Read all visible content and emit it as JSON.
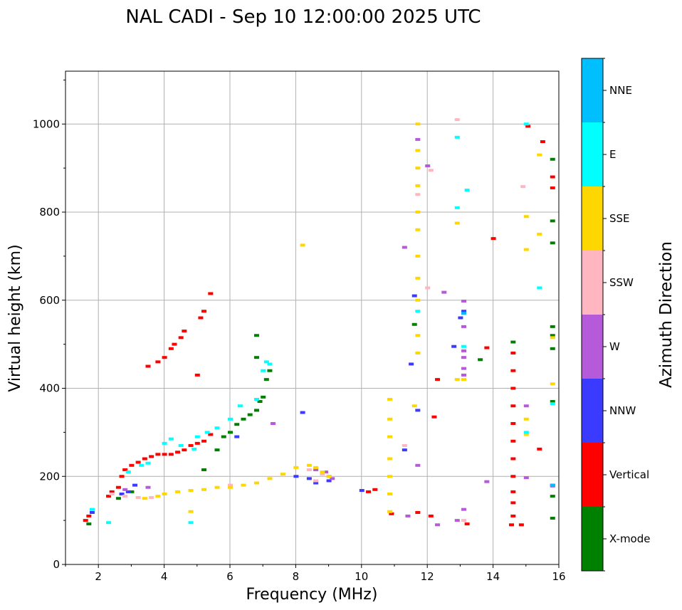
{
  "chart_data": {
    "type": "scatter",
    "title": "NAL CADI - Sep 10 12:00:00 2025 UTC",
    "xlabel": "Frequency (MHz)",
    "ylabel": "Virtual height (km)",
    "xlim": [
      1,
      16
    ],
    "ylim": [
      0,
      1120
    ],
    "xticks": [
      "2",
      "4",
      "6",
      "8",
      "10",
      "12",
      "14",
      "16"
    ],
    "yticks": [
      "0",
      "200",
      "400",
      "600",
      "800",
      "1000"
    ],
    "grid": true,
    "colorbar": {
      "title": "Azimuth Direction",
      "categories": [
        "X-mode",
        "Vertical",
        "NNW",
        "W",
        "SSW",
        "SSE",
        "E",
        "NNE"
      ],
      "colors": [
        "#008000",
        "#ff0000",
        "#3b3bff",
        "#b55ad8",
        "#ffb6c1",
        "#ffd700",
        "#00ffff",
        "#00bfff"
      ]
    },
    "series": [
      {
        "name": "X-mode",
        "points": [
          [
            1.7,
            92
          ],
          [
            2.6,
            150
          ],
          [
            3.0,
            165
          ],
          [
            5.2,
            215
          ],
          [
            5.6,
            260
          ],
          [
            5.8,
            290
          ],
          [
            6.0,
            300
          ],
          [
            6.2,
            318
          ],
          [
            6.4,
            330
          ],
          [
            6.6,
            340
          ],
          [
            6.8,
            350
          ],
          [
            6.9,
            370
          ],
          [
            7.0,
            380
          ],
          [
            7.1,
            420
          ],
          [
            7.2,
            440
          ],
          [
            6.8,
            470
          ],
          [
            6.8,
            520
          ],
          [
            11.6,
            545
          ],
          [
            14.6,
            505
          ],
          [
            15.8,
            370
          ],
          [
            15.8,
            490
          ],
          [
            15.8,
            520
          ],
          [
            15.8,
            540
          ],
          [
            15.8,
            730
          ],
          [
            15.8,
            780
          ],
          [
            15.8,
            920
          ],
          [
            15.8,
            105
          ],
          [
            15.8,
            155
          ],
          [
            13.6,
            465
          ]
        ]
      },
      {
        "name": "Vertical",
        "points": [
          [
            1.6,
            100
          ],
          [
            1.7,
            110
          ],
          [
            2.3,
            155
          ],
          [
            2.4,
            165
          ],
          [
            2.6,
            175
          ],
          [
            2.7,
            200
          ],
          [
            2.8,
            215
          ],
          [
            3.0,
            225
          ],
          [
            3.2,
            232
          ],
          [
            3.4,
            240
          ],
          [
            3.6,
            245
          ],
          [
            3.8,
            250
          ],
          [
            4.0,
            250
          ],
          [
            4.2,
            250
          ],
          [
            4.4,
            255
          ],
          [
            4.6,
            260
          ],
          [
            4.8,
            270
          ],
          [
            5.0,
            275
          ],
          [
            5.2,
            280
          ],
          [
            5.4,
            295
          ],
          [
            5.0,
            430
          ],
          [
            5.1,
            560
          ],
          [
            5.2,
            575
          ],
          [
            5.4,
            615
          ],
          [
            4.0,
            470
          ],
          [
            4.2,
            490
          ],
          [
            4.3,
            500
          ],
          [
            4.5,
            515
          ],
          [
            4.6,
            530
          ],
          [
            3.5,
            450
          ],
          [
            3.8,
            460
          ],
          [
            10.2,
            165
          ],
          [
            10.4,
            170
          ],
          [
            10.9,
            115
          ],
          [
            11.7,
            118
          ],
          [
            12.1,
            110
          ],
          [
            12.2,
            335
          ],
          [
            12.3,
            420
          ],
          [
            13.2,
            92
          ],
          [
            14.0,
            740
          ],
          [
            13.8,
            492
          ],
          [
            14.55,
            90
          ],
          [
            14.6,
            110
          ],
          [
            14.6,
            140
          ],
          [
            14.6,
            165
          ],
          [
            14.6,
            200
          ],
          [
            14.6,
            240
          ],
          [
            14.6,
            280
          ],
          [
            14.6,
            320
          ],
          [
            14.6,
            360
          ],
          [
            14.6,
            400
          ],
          [
            14.6,
            440
          ],
          [
            14.6,
            480
          ],
          [
            14.85,
            90
          ],
          [
            15.05,
            995
          ],
          [
            15.4,
            262
          ],
          [
            15.5,
            960
          ],
          [
            15.8,
            855
          ],
          [
            15.8,
            880
          ]
        ]
      },
      {
        "name": "NNW",
        "points": [
          [
            1.8,
            118
          ],
          [
            2.7,
            160
          ],
          [
            2.9,
            165
          ],
          [
            3.1,
            180
          ],
          [
            6.2,
            290
          ],
          [
            8.0,
            200
          ],
          [
            8.2,
            345
          ],
          [
            8.4,
            195
          ],
          [
            8.6,
            185
          ],
          [
            9.0,
            190
          ],
          [
            10.0,
            168
          ],
          [
            11.3,
            260
          ],
          [
            11.5,
            455
          ],
          [
            11.6,
            610
          ],
          [
            11.7,
            350
          ],
          [
            12.8,
            495
          ],
          [
            13.0,
            560
          ],
          [
            13.1,
            575
          ],
          [
            15.8,
            180
          ]
        ]
      },
      {
        "name": "W",
        "points": [
          [
            2.8,
            170
          ],
          [
            3.5,
            175
          ],
          [
            7.3,
            320
          ],
          [
            8.6,
            215
          ],
          [
            8.9,
            210
          ],
          [
            9.0,
            200
          ],
          [
            9.1,
            195
          ],
          [
            11.3,
            720
          ],
          [
            11.4,
            110
          ],
          [
            11.7,
            225
          ],
          [
            11.7,
            965
          ],
          [
            12.0,
            905
          ],
          [
            12.3,
            90
          ],
          [
            12.5,
            618
          ],
          [
            12.9,
            100
          ],
          [
            13.1,
            125
          ],
          [
            13.1,
            470
          ],
          [
            13.1,
            485
          ],
          [
            13.1,
            598
          ],
          [
            13.1,
            540
          ],
          [
            13.1,
            445
          ],
          [
            13.1,
            430
          ],
          [
            13.8,
            188
          ],
          [
            15.0,
            197
          ],
          [
            15.0,
            360
          ],
          [
            15.8,
            178
          ]
        ]
      },
      {
        "name": "SSW",
        "points": [
          [
            2.4,
            160
          ],
          [
            2.8,
            155
          ],
          [
            3.2,
            152
          ],
          [
            3.6,
            152
          ],
          [
            6.0,
            180
          ],
          [
            8.4,
            215
          ],
          [
            8.6,
            190
          ],
          [
            8.8,
            205
          ],
          [
            11.3,
            270
          ],
          [
            11.7,
            840
          ],
          [
            12.0,
            628
          ],
          [
            12.1,
            895
          ],
          [
            12.9,
            1010
          ],
          [
            13.1,
            100
          ],
          [
            14.9,
            858
          ]
        ]
      },
      {
        "name": "SSE",
        "points": [
          [
            3.4,
            150
          ],
          [
            3.8,
            155
          ],
          [
            4.0,
            160
          ],
          [
            4.4,
            165
          ],
          [
            4.8,
            168
          ],
          [
            5.2,
            170
          ],
          [
            5.6,
            175
          ],
          [
            6.0,
            175
          ],
          [
            6.4,
            180
          ],
          [
            6.8,
            185
          ],
          [
            7.2,
            195
          ],
          [
            7.6,
            205
          ],
          [
            8.0,
            220
          ],
          [
            8.4,
            225
          ],
          [
            8.6,
            220
          ],
          [
            8.8,
            210
          ],
          [
            9.0,
            200
          ],
          [
            10.85,
            120
          ],
          [
            10.85,
            160
          ],
          [
            10.85,
            200
          ],
          [
            10.85,
            240
          ],
          [
            10.85,
            290
          ],
          [
            10.85,
            330
          ],
          [
            10.85,
            375
          ],
          [
            4.8,
            120
          ],
          [
            8.2,
            725
          ],
          [
            11.6,
            360
          ],
          [
            11.7,
            480
          ],
          [
            11.7,
            520
          ],
          [
            11.7,
            600
          ],
          [
            11.7,
            650
          ],
          [
            11.7,
            700
          ],
          [
            11.7,
            760
          ],
          [
            11.7,
            800
          ],
          [
            11.7,
            860
          ],
          [
            11.7,
            900
          ],
          [
            11.7,
            940
          ],
          [
            11.7,
            1000
          ],
          [
            12.9,
            420
          ],
          [
            12.9,
            775
          ],
          [
            13.1,
            420
          ],
          [
            15.0,
            295
          ],
          [
            15.0,
            330
          ],
          [
            15.0,
            715
          ],
          [
            15.0,
            790
          ],
          [
            15.4,
            930
          ],
          [
            15.4,
            750
          ],
          [
            15.8,
            410
          ],
          [
            15.8,
            515
          ]
        ]
      },
      {
        "name": "E",
        "points": [
          [
            1.8,
            125
          ],
          [
            2.3,
            95
          ],
          [
            2.9,
            210
          ],
          [
            3.3,
            225
          ],
          [
            3.5,
            230
          ],
          [
            4.0,
            275
          ],
          [
            4.2,
            285
          ],
          [
            4.5,
            270
          ],
          [
            4.9,
            262
          ],
          [
            5.0,
            290
          ],
          [
            5.3,
            300
          ],
          [
            5.6,
            310
          ],
          [
            6.0,
            330
          ],
          [
            6.3,
            360
          ],
          [
            6.8,
            375
          ],
          [
            7.0,
            440
          ],
          [
            7.2,
            455
          ],
          [
            7.1,
            460
          ],
          [
            4.8,
            95
          ],
          [
            11.7,
            575
          ],
          [
            12.9,
            810
          ],
          [
            12.9,
            970
          ],
          [
            13.2,
            850
          ],
          [
            13.1,
            495
          ],
          [
            15.0,
            300
          ],
          [
            15.0,
            1000
          ],
          [
            15.4,
            628
          ],
          [
            15.8,
            365
          ]
        ]
      },
      {
        "name": "NNE",
        "points": [
          [
            13.1,
            570
          ],
          [
            15.8,
            180
          ]
        ]
      }
    ]
  }
}
